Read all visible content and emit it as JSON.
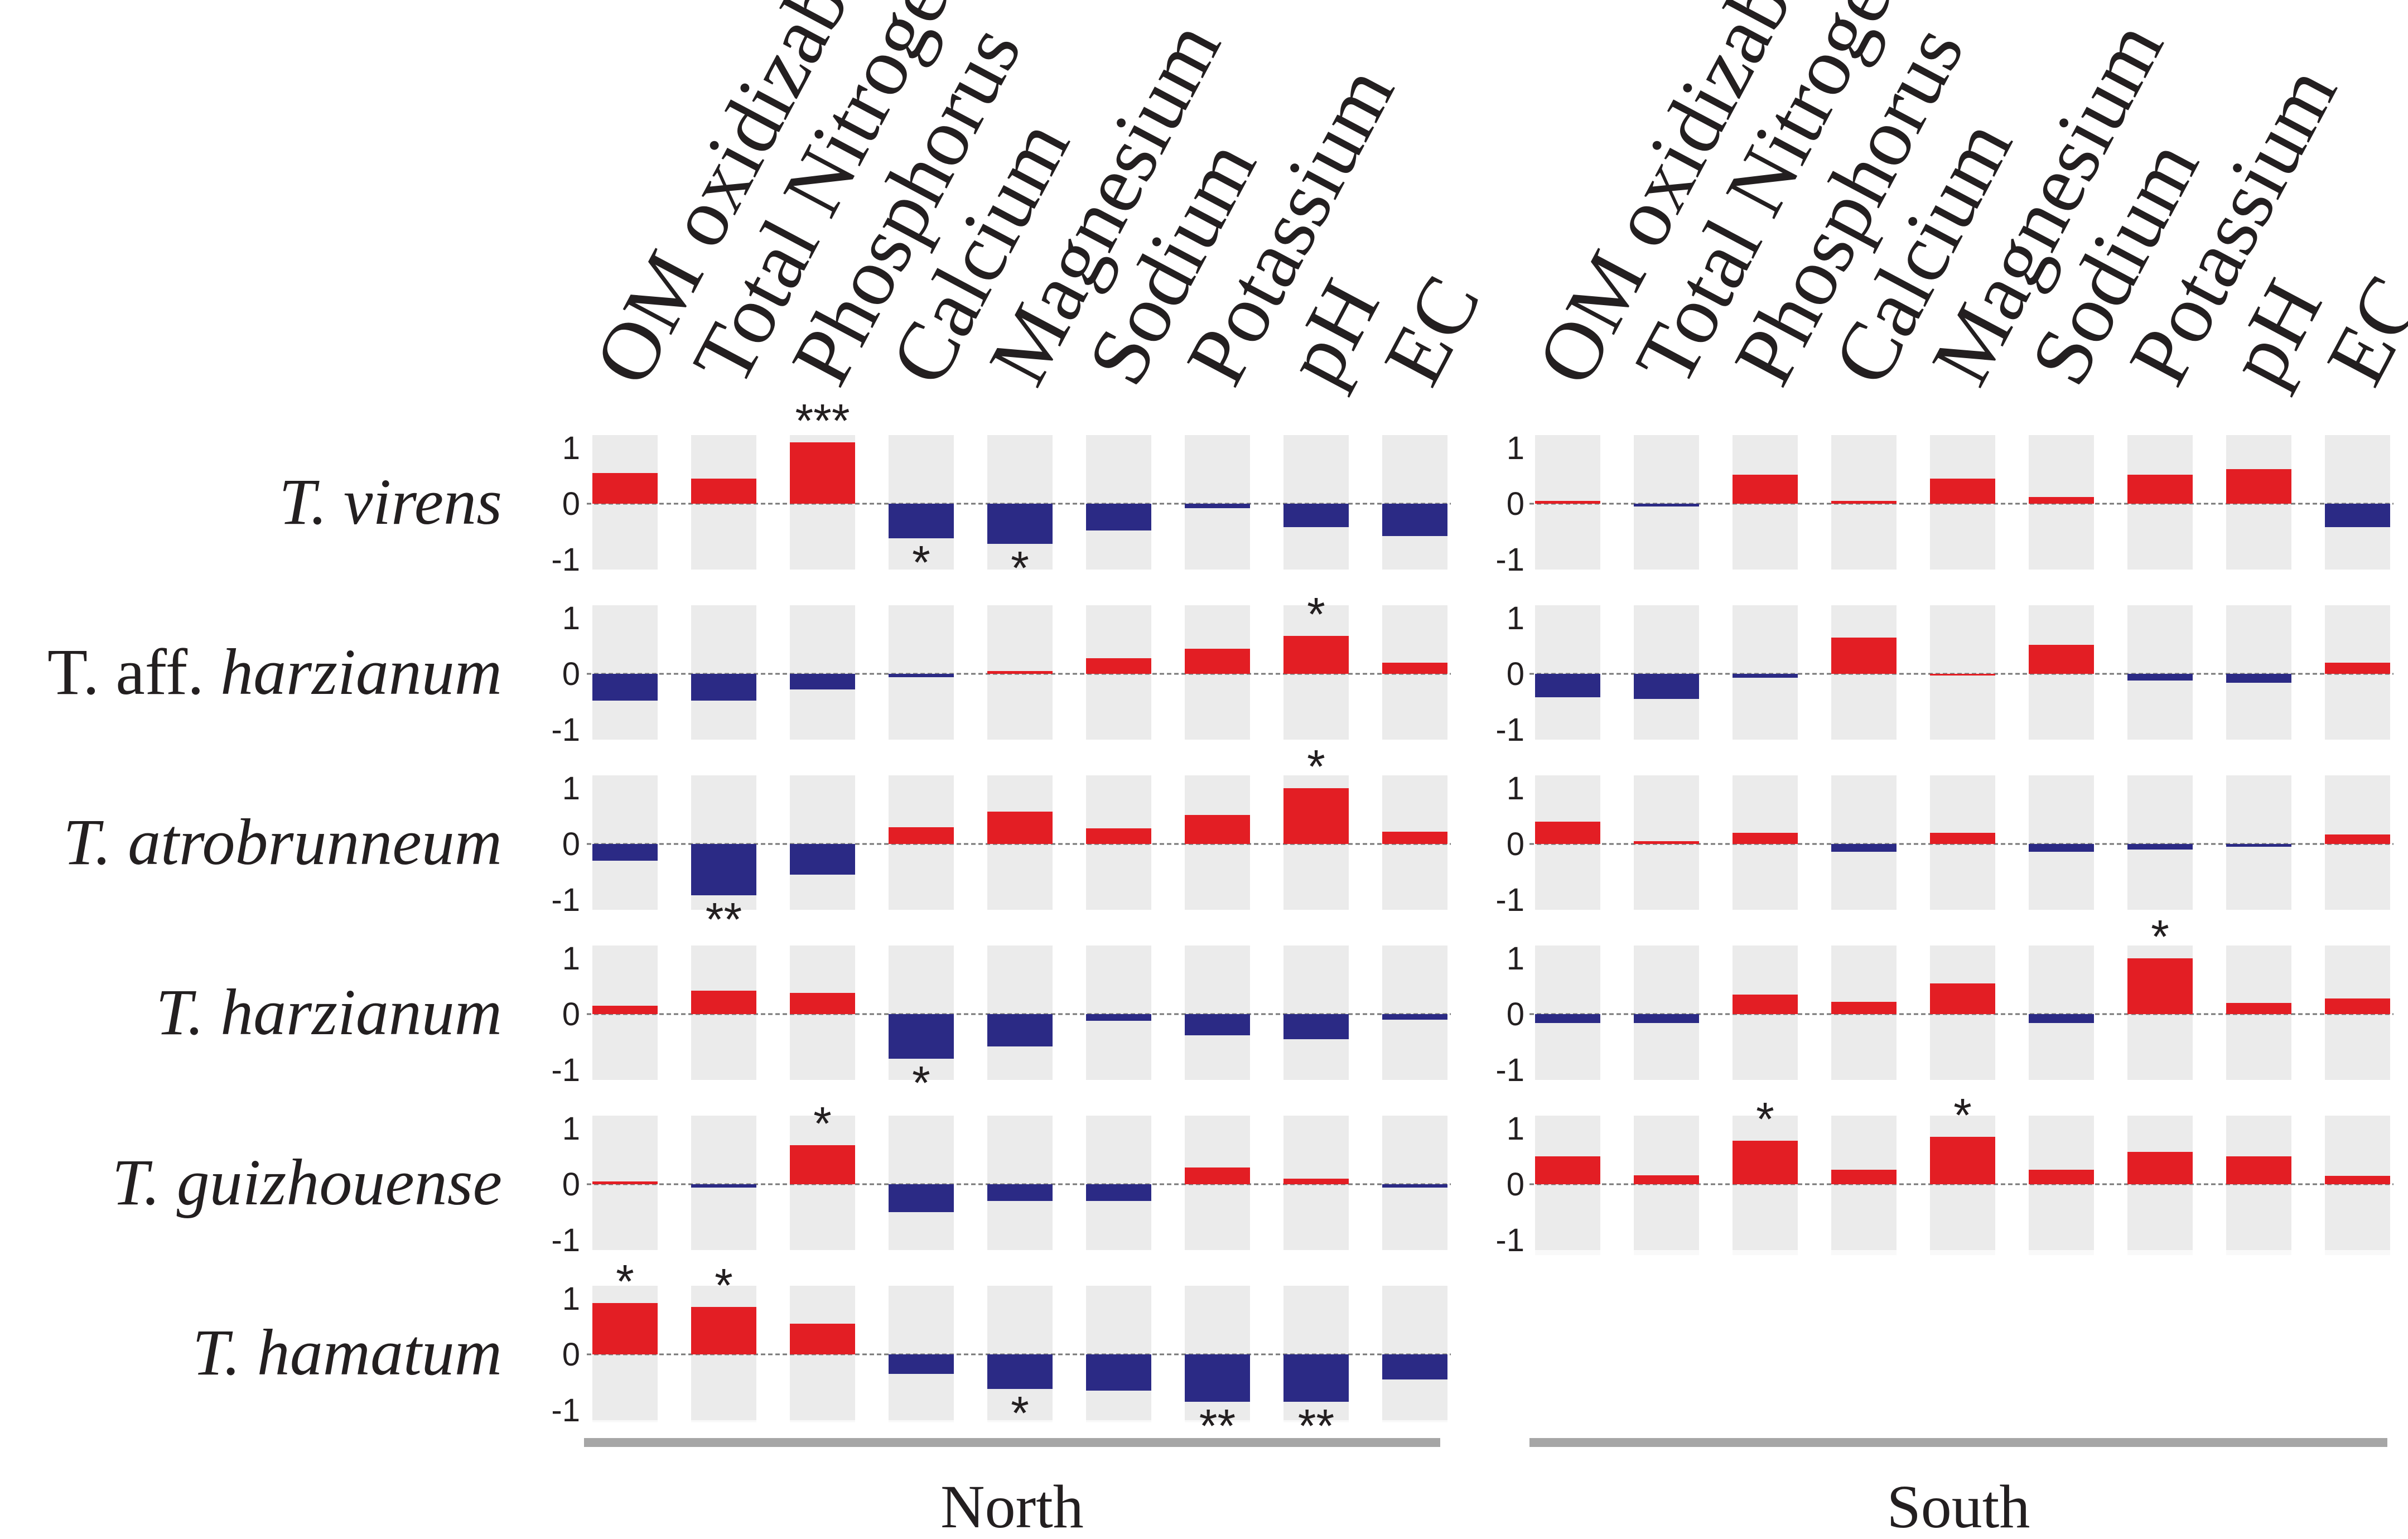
{
  "chart_data": {
    "type": "bar",
    "title": "",
    "variables": [
      "OM oxidizable",
      "Total Nitrogen",
      "Phosphorus",
      "Calcium",
      "Magnesium",
      "Sodium",
      "Potassium",
      "pH",
      "EC"
    ],
    "y_ticks": [
      "1",
      "0",
      "-1"
    ],
    "ylim": [
      -1,
      1
    ],
    "colors": {
      "positive": "#e31e24",
      "negative": "#2b2a85",
      "cell_bg": "#ebebeb",
      "baseline": "#777777",
      "region_bar": "#a6a6a6"
    },
    "panels": [
      {
        "region": "North",
        "rows": [
          {
            "label_prefix": "",
            "label_italic": "T. virens",
            "values": [
              0.55,
              0.45,
              1.1,
              -0.62,
              -0.72,
              -0.48,
              -0.08,
              -0.42,
              -0.58
            ],
            "stars": [
              "",
              "",
              "***",
              "*",
              "*",
              "",
              "",
              "",
              ""
            ]
          },
          {
            "label_prefix": "T. aff. ",
            "label_italic": "harzianum",
            "values": [
              -0.48,
              -0.48,
              -0.28,
              -0.06,
              0.05,
              0.28,
              0.45,
              0.68,
              0.2
            ],
            "stars": [
              "",
              "",
              "",
              "",
              "",
              "",
              "",
              "*",
              ""
            ]
          },
          {
            "label_prefix": "",
            "label_italic": "T. atrobrunneum",
            "values": [
              -0.3,
              -0.92,
              -0.55,
              0.3,
              0.58,
              0.28,
              0.52,
              1.0,
              0.22
            ],
            "stars": [
              "",
              "**",
              "",
              "",
              "",
              "",
              "",
              "*",
              ""
            ]
          },
          {
            "label_prefix": "",
            "label_italic": "T. harzianum",
            "values": [
              0.15,
              0.42,
              0.38,
              -0.8,
              -0.58,
              -0.12,
              -0.38,
              -0.45,
              -0.1
            ],
            "stars": [
              "",
              "",
              "",
              "*",
              "",
              "",
              "",
              "",
              ""
            ]
          },
          {
            "label_prefix": "",
            "label_italic": "T. guizhouense",
            "values": [
              0.05,
              -0.06,
              0.7,
              -0.5,
              -0.3,
              -0.3,
              0.3,
              0.1,
              -0.06
            ],
            "stars": [
              "",
              "",
              "*",
              "",
              "",
              "",
              "",
              "",
              ""
            ]
          },
          {
            "label_prefix": "",
            "label_italic": "T. hamatum",
            "values": [
              0.92,
              0.85,
              0.55,
              -0.35,
              -0.62,
              -0.65,
              -0.85,
              -0.85,
              -0.45
            ],
            "stars": [
              "*",
              "*",
              "",
              "",
              "*",
              "",
              "**",
              "**",
              ""
            ]
          }
        ]
      },
      {
        "region": "South",
        "rows": [
          {
            "values": [
              0.05,
              -0.05,
              0.52,
              0.05,
              0.45,
              0.12,
              0.52,
              0.62,
              -0.42
            ],
            "stars": [
              "",
              "",
              "",
              "",
              "",
              "",
              "",
              "",
              ""
            ]
          },
          {
            "values": [
              -0.42,
              -0.45,
              -0.07,
              0.65,
              0.0,
              0.52,
              -0.12,
              -0.16,
              0.2
            ],
            "stars": [
              "",
              "",
              "",
              "",
              "",
              "",
              "",
              "",
              ""
            ]
          },
          {
            "values": [
              0.4,
              0.05,
              0.2,
              -0.14,
              0.2,
              -0.14,
              -0.1,
              -0.05,
              0.17
            ],
            "stars": [
              "",
              "",
              "",
              "",
              "",
              "",
              "",
              "",
              ""
            ]
          },
          {
            "values": [
              -0.16,
              -0.16,
              0.35,
              0.22,
              0.55,
              -0.16,
              1.0,
              0.2,
              0.28
            ],
            "stars": [
              "",
              "",
              "",
              "",
              "",
              "",
              "*",
              "",
              ""
            ]
          },
          {
            "values": [
              0.5,
              0.16,
              0.78,
              0.26,
              0.85,
              0.26,
              0.58,
              0.5,
              0.15
            ],
            "stars": [
              "",
              "",
              "*",
              "",
              "*",
              "",
              "",
              "",
              ""
            ]
          }
        ]
      }
    ],
    "row_label_order": [
      0,
      1,
      2,
      3,
      4,
      5
    ]
  }
}
